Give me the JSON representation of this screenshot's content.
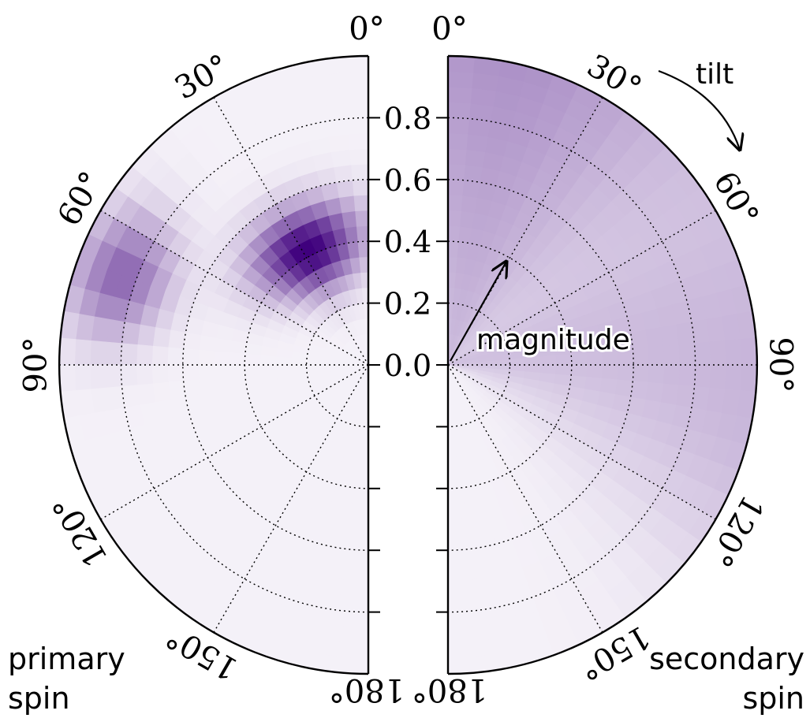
{
  "chart_data": [
    {
      "type": "heatmap",
      "panel": "left",
      "label": [
        "primary",
        "spin"
      ],
      "projection": "polar half-disk, tilt measured from top, opens to the left",
      "radial_ticks": [
        "0.0",
        "0.2",
        "0.4",
        "0.6",
        "0.8"
      ],
      "angle_ticks": [
        "0°",
        "30°",
        "60°",
        "90°",
        "120°",
        "150°",
        "180°"
      ],
      "rlim": [
        0,
        1
      ],
      "tilt_range_deg": [
        0,
        180
      ],
      "grid": true,
      "colormap": "Purples",
      "peak": {
        "magnitude": 0.42,
        "tilt_deg": 28
      },
      "peak_spread": {
        "magnitude": 0.14,
        "tilt_deg": 24
      },
      "secondary_peak": {
        "magnitude": 0.85,
        "tilt_deg": 70,
        "weight": 0.55
      }
    },
    {
      "type": "heatmap",
      "panel": "right",
      "label": [
        "secondary",
        "spin"
      ],
      "projection": "polar half-disk, tilt measured from top, opens to the right",
      "angle_ticks": [
        "0°",
        "30°",
        "60°",
        "90°",
        "120°",
        "150°",
        "180°"
      ],
      "rlim": [
        0,
        1
      ],
      "tilt_range_deg": [
        0,
        180
      ],
      "grid": true,
      "colormap": "Purples",
      "density_note": "broad, low-contrast; highest near tilt 0°–40° at large magnitude"
    }
  ],
  "annotations": {
    "tilt": "tilt",
    "magnitude": "magnitude"
  },
  "colors": {
    "low": "#fcfbfd",
    "high": "#3f007d",
    "axis": "#000000",
    "grid": "#000000"
  }
}
